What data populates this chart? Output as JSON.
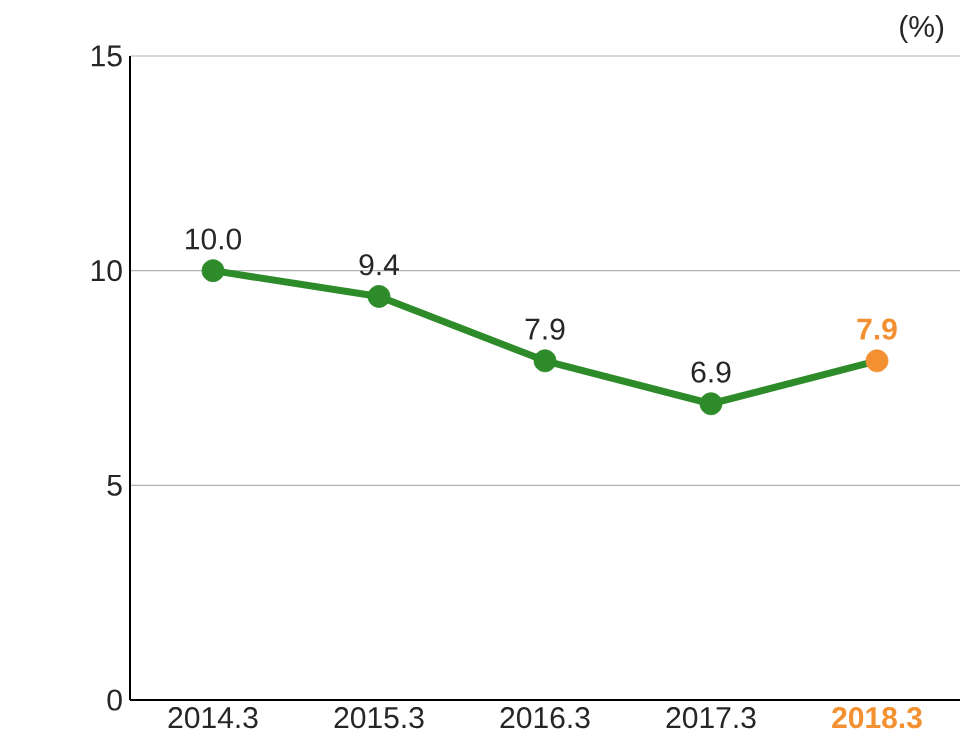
{
  "chart_data": {
    "type": "line",
    "ylabel": "(%)",
    "categories": [
      "2014.3",
      "2015.3",
      "2016.3",
      "2017.3",
      "2018.3"
    ],
    "values": [
      10.0,
      9.4,
      7.9,
      6.9,
      7.9
    ],
    "value_labels": [
      "10.0",
      "9.4",
      "7.9",
      "6.9",
      "7.9"
    ],
    "color": "#2e8b2a",
    "colors": [
      "#2e8b2a",
      "#2e8b2a",
      "#2e8b2a",
      "#2e8b2a",
      "#f39132"
    ],
    "ylim": [
      0,
      15
    ],
    "yticks": [
      0,
      5,
      10,
      15
    ],
    "grid": "y",
    "marker": "circle",
    "line_style": "solid"
  }
}
